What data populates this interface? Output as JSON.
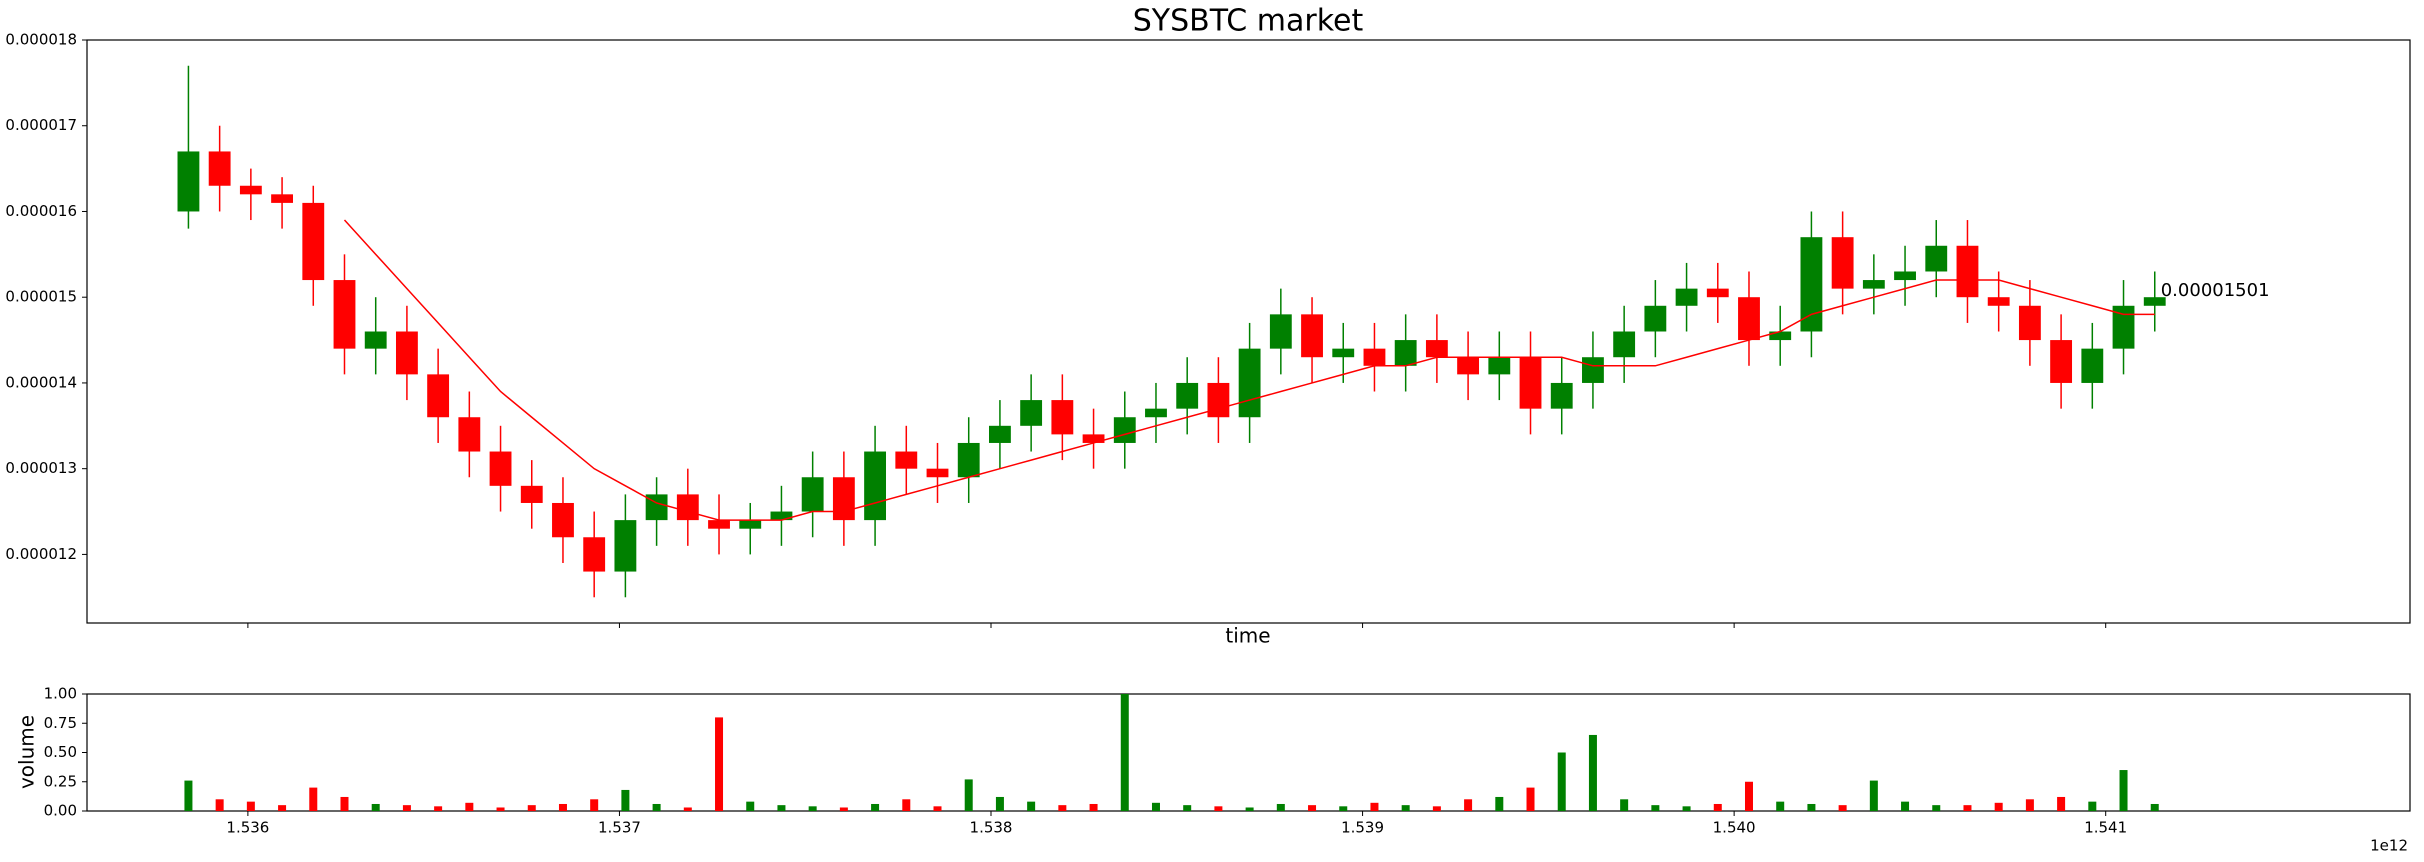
{
  "chart_data": {
    "type": "candlestick",
    "title": "SYSBTC market",
    "xlabel": "time",
    "x_offset_label": "1e12",
    "annotation": "0.00001501",
    "up_color": "#008000",
    "down_color": "#ff0000",
    "xlim": [
      1535567000000,
      1541819000000
    ],
    "xticks": [
      {
        "value": 1536000000000,
        "label": "1.536"
      },
      {
        "value": 1537000000000,
        "label": "1.537"
      },
      {
        "value": 1538000000000,
        "label": "1.538"
      },
      {
        "value": 1539000000000,
        "label": "1.539"
      },
      {
        "value": 1540000000000,
        "label": "1.540"
      },
      {
        "value": 1541000000000,
        "label": "1.541"
      }
    ],
    "ylim": [
      1.12e-05,
      1.8e-05
    ],
    "yticks": [
      1.2e-05,
      1.3e-05,
      1.4e-05,
      1.5e-05,
      1.6e-05,
      1.7e-05,
      1.8e-05
    ],
    "x": [
      1535840000000,
      1535924000000,
      1536008000000,
      1536092000000,
      1536176000000,
      1536260000000,
      1536344000000,
      1536428000000,
      1536512000000,
      1536596000000,
      1536680000000,
      1536764000000,
      1536848000000,
      1536932000000,
      1537016000000,
      1537100000000,
      1537184000000,
      1537268000000,
      1537352000000,
      1537436000000,
      1537520000000,
      1537604000000,
      1537688000000,
      1537772000000,
      1537856000000,
      1537940000000,
      1538024000000,
      1538108000000,
      1538192000000,
      1538276000000,
      1538360000000,
      1538444000000,
      1538528000000,
      1538612000000,
      1538696000000,
      1538780000000,
      1538864000000,
      1538948000000,
      1539032000000,
      1539116000000,
      1539200000000,
      1539284000000,
      1539368000000,
      1539452000000,
      1539536000000,
      1539620000000,
      1539704000000,
      1539788000000,
      1539872000000,
      1539956000000,
      1540040000000,
      1540124000000,
      1540208000000,
      1540292000000,
      1540376000000,
      1540460000000,
      1540544000000,
      1540628000000,
      1540712000000,
      1540796000000,
      1540880000000,
      1540964000000,
      1541048000000,
      1541132000000
    ],
    "open": [
      1.6e-05,
      1.67e-05,
      1.63e-05,
      1.62e-05,
      1.61e-05,
      1.52e-05,
      1.44e-05,
      1.46e-05,
      1.41e-05,
      1.36e-05,
      1.32e-05,
      1.28e-05,
      1.26e-05,
      1.22e-05,
      1.18e-05,
      1.24e-05,
      1.27e-05,
      1.24e-05,
      1.23e-05,
      1.24e-05,
      1.25e-05,
      1.29e-05,
      1.24e-05,
      1.32e-05,
      1.3e-05,
      1.29e-05,
      1.33e-05,
      1.35e-05,
      1.38e-05,
      1.34e-05,
      1.33e-05,
      1.36e-05,
      1.37e-05,
      1.4e-05,
      1.36e-05,
      1.44e-05,
      1.48e-05,
      1.43e-05,
      1.44e-05,
      1.42e-05,
      1.45e-05,
      1.43e-05,
      1.41e-05,
      1.43e-05,
      1.37e-05,
      1.4e-05,
      1.43e-05,
      1.46e-05,
      1.49e-05,
      1.51e-05,
      1.5e-05,
      1.45e-05,
      1.46e-05,
      1.57e-05,
      1.51e-05,
      1.52e-05,
      1.53e-05,
      1.56e-05,
      1.5e-05,
      1.49e-05,
      1.45e-05,
      1.4e-05,
      1.44e-05,
      1.49e-05
    ],
    "high": [
      1.77e-05,
      1.7e-05,
      1.65e-05,
      1.64e-05,
      1.63e-05,
      1.55e-05,
      1.5e-05,
      1.49e-05,
      1.44e-05,
      1.39e-05,
      1.35e-05,
      1.31e-05,
      1.29e-05,
      1.25e-05,
      1.27e-05,
      1.29e-05,
      1.3e-05,
      1.27e-05,
      1.26e-05,
      1.28e-05,
      1.32e-05,
      1.32e-05,
      1.35e-05,
      1.35e-05,
      1.33e-05,
      1.36e-05,
      1.38e-05,
      1.41e-05,
      1.41e-05,
      1.37e-05,
      1.39e-05,
      1.4e-05,
      1.43e-05,
      1.43e-05,
      1.47e-05,
      1.51e-05,
      1.5e-05,
      1.47e-05,
      1.47e-05,
      1.48e-05,
      1.48e-05,
      1.46e-05,
      1.46e-05,
      1.46e-05,
      1.43e-05,
      1.46e-05,
      1.49e-05,
      1.52e-05,
      1.54e-05,
      1.54e-05,
      1.53e-05,
      1.49e-05,
      1.6e-05,
      1.6e-05,
      1.55e-05,
      1.56e-05,
      1.59e-05,
      1.59e-05,
      1.53e-05,
      1.52e-05,
      1.48e-05,
      1.47e-05,
      1.52e-05,
      1.53e-05
    ],
    "low": [
      1.58e-05,
      1.6e-05,
      1.59e-05,
      1.58e-05,
      1.49e-05,
      1.41e-05,
      1.41e-05,
      1.38e-05,
      1.33e-05,
      1.29e-05,
      1.25e-05,
      1.23e-05,
      1.19e-05,
      1.15e-05,
      1.15e-05,
      1.21e-05,
      1.21e-05,
      1.2e-05,
      1.2e-05,
      1.21e-05,
      1.22e-05,
      1.21e-05,
      1.21e-05,
      1.27e-05,
      1.26e-05,
      1.26e-05,
      1.3e-05,
      1.32e-05,
      1.31e-05,
      1.3e-05,
      1.3e-05,
      1.33e-05,
      1.34e-05,
      1.33e-05,
      1.33e-05,
      1.41e-05,
      1.4e-05,
      1.4e-05,
      1.39e-05,
      1.39e-05,
      1.4e-05,
      1.38e-05,
      1.38e-05,
      1.34e-05,
      1.34e-05,
      1.37e-05,
      1.4e-05,
      1.43e-05,
      1.46e-05,
      1.47e-05,
      1.42e-05,
      1.42e-05,
      1.43e-05,
      1.48e-05,
      1.48e-05,
      1.49e-05,
      1.5e-05,
      1.47e-05,
      1.46e-05,
      1.42e-05,
      1.37e-05,
      1.37e-05,
      1.41e-05,
      1.46e-05
    ],
    "close": [
      1.67e-05,
      1.63e-05,
      1.62e-05,
      1.61e-05,
      1.52e-05,
      1.44e-05,
      1.46e-05,
      1.41e-05,
      1.36e-05,
      1.32e-05,
      1.28e-05,
      1.26e-05,
      1.22e-05,
      1.18e-05,
      1.24e-05,
      1.27e-05,
      1.24e-05,
      1.23e-05,
      1.24e-05,
      1.25e-05,
      1.29e-05,
      1.24e-05,
      1.32e-05,
      1.3e-05,
      1.29e-05,
      1.33e-05,
      1.35e-05,
      1.38e-05,
      1.34e-05,
      1.33e-05,
      1.36e-05,
      1.37e-05,
      1.4e-05,
      1.36e-05,
      1.44e-05,
      1.48e-05,
      1.43e-05,
      1.44e-05,
      1.42e-05,
      1.45e-05,
      1.43e-05,
      1.41e-05,
      1.43e-05,
      1.37e-05,
      1.4e-05,
      1.43e-05,
      1.46e-05,
      1.49e-05,
      1.51e-05,
      1.5e-05,
      1.45e-05,
      1.46e-05,
      1.57e-05,
      1.51e-05,
      1.52e-05,
      1.53e-05,
      1.56e-05,
      1.5e-05,
      1.49e-05,
      1.45e-05,
      1.4e-05,
      1.44e-05,
      1.49e-05,
      1.5e-05
    ],
    "lines": [
      {
        "color": "#ff0000",
        "values": [
          null,
          null,
          null,
          null,
          null,
          1.59e-05,
          1.55e-05,
          1.51e-05,
          1.47e-05,
          1.43e-05,
          1.39e-05,
          1.36e-05,
          1.33e-05,
          1.3e-05,
          1.28e-05,
          1.26e-05,
          1.25e-05,
          1.24e-05,
          1.24e-05,
          1.24e-05,
          1.25e-05,
          1.25e-05,
          1.26e-05,
          1.27e-05,
          1.28e-05,
          1.29e-05,
          1.3e-05,
          1.31e-05,
          1.32e-05,
          1.33e-05,
          1.34e-05,
          1.35e-05,
          1.36e-05,
          1.37e-05,
          1.38e-05,
          1.39e-05,
          1.4e-05,
          1.41e-05,
          1.42e-05,
          1.42e-05,
          1.43e-05,
          1.43e-05,
          1.43e-05,
          1.43e-05,
          1.43e-05,
          1.42e-05,
          1.42e-05,
          1.42e-05,
          1.43e-05,
          1.44e-05,
          1.45e-05,
          1.46e-05,
          1.48e-05,
          1.49e-05,
          1.5e-05,
          1.51e-05,
          1.52e-05,
          1.52e-05,
          1.52e-05,
          1.51e-05,
          1.5e-05,
          1.49e-05,
          1.48e-05,
          1.48e-05
        ]
      }
    ],
    "volume": {
      "ylabel": "volume",
      "ylim": [
        0,
        1
      ],
      "yticks": [
        {
          "value": 0,
          "label": "0.00"
        },
        {
          "value": 0.25,
          "label": "0.25"
        },
        {
          "value": 0.5,
          "label": "0.50"
        },
        {
          "value": 0.75,
          "label": "0.75"
        },
        {
          "value": 1,
          "label": "1.00"
        }
      ],
      "values": [
        0.26,
        0.1,
        0.08,
        0.05,
        0.2,
        0.12,
        0.06,
        0.05,
        0.04,
        0.07,
        0.03,
        0.05,
        0.06,
        0.1,
        0.18,
        0.06,
        0.03,
        0.8,
        0.08,
        0.05,
        0.04,
        0.03,
        0.06,
        0.1,
        0.04,
        0.27,
        0.12,
        0.08,
        0.05,
        0.06,
        1.0,
        0.07,
        0.05,
        0.04,
        0.03,
        0.06,
        0.05,
        0.04,
        0.07,
        0.05,
        0.04,
        0.1,
        0.12,
        0.2,
        0.5,
        0.65,
        0.1,
        0.05,
        0.04,
        0.06,
        0.25,
        0.08,
        0.06,
        0.05,
        0.26,
        0.08,
        0.05,
        0.05,
        0.07,
        0.1,
        0.12,
        0.08,
        0.35,
        0.06
      ]
    }
  }
}
